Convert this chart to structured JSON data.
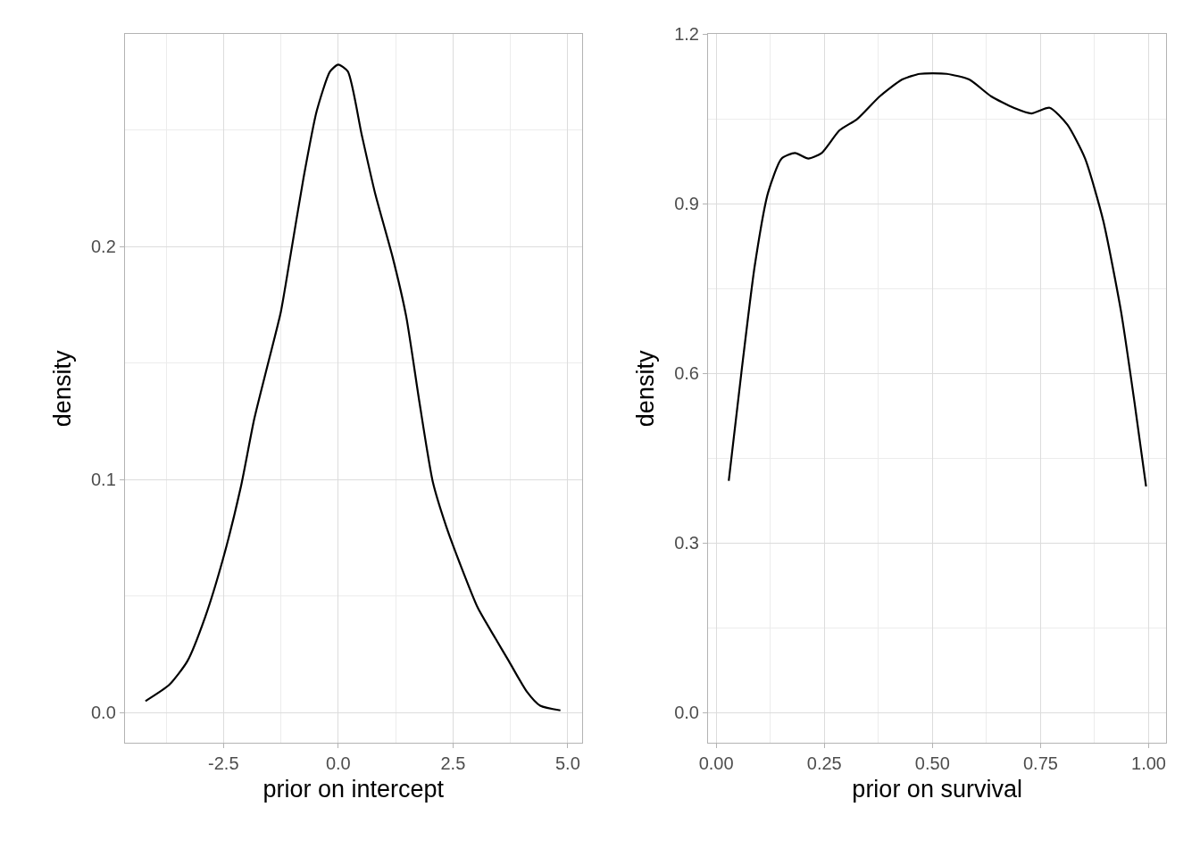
{
  "chart_data": [
    {
      "type": "line",
      "xlabel": "prior on intercept",
      "ylabel": "density",
      "xlim": [
        -4.65,
        5.31
      ],
      "ylim": [
        -0.013,
        0.291
      ],
      "xticks": [
        -2.5,
        {
          "value": 0,
          "label": "0.0"
        },
        2.5,
        {
          "value": 5,
          "label": "5.0"
        }
      ],
      "yticks": [
        {
          "value": 0,
          "label": "0.0"
        },
        0.1,
        0.2
      ],
      "grid": true,
      "marker": "none",
      "line_style": "solid",
      "series": [
        {
          "color": "#000000",
          "x": [
            -4.2,
            -3.68,
            -3.29,
            -2.9,
            -2.51,
            -2.12,
            -1.83,
            -1.54,
            -1.25,
            -1.05,
            -0.76,
            -0.47,
            -0.18,
            0,
            0.21,
            0.51,
            0.8,
            1.19,
            1.48,
            1.77,
            2.06,
            2.35,
            2.65,
            3.04,
            3.42,
            3.72,
            4.11,
            4.4,
            4.84
          ],
          "values": [
            0.005,
            0.012,
            0.022,
            0.041,
            0.066,
            0.097,
            0.126,
            0.149,
            0.172,
            0.195,
            0.229,
            0.258,
            0.275,
            0.278,
            0.275,
            0.248,
            0.223,
            0.195,
            0.17,
            0.133,
            0.099,
            0.08,
            0.064,
            0.045,
            0.032,
            0.022,
            0.009,
            0.003,
            0.001
          ]
        }
      ]
    },
    {
      "type": "line",
      "xlabel": "prior on survival",
      "ylabel": "density",
      "xlim": [
        -0.019,
        1.041
      ],
      "ylim": [
        -0.054,
        1.2
      ],
      "xticks": [
        {
          "value": 0,
          "label": "0.00"
        },
        {
          "value": 0.25,
          "label": "0.25"
        },
        {
          "value": 0.5,
          "label": "0.50"
        },
        {
          "value": 0.75,
          "label": "0.75"
        },
        {
          "value": 1,
          "label": "1.00"
        }
      ],
      "yticks": [
        {
          "value": 0,
          "label": "0.0"
        },
        {
          "value": 0.3,
          "label": "0.3"
        },
        {
          "value": 0.6,
          "label": "0.6"
        },
        {
          "value": 0.9,
          "label": "0.9"
        },
        {
          "value": 1.2,
          "label": "1.2"
        }
      ],
      "grid": true,
      "marker": "none",
      "line_style": "solid",
      "series": [
        {
          "color": "#000000",
          "x": [
            0.029,
            0.058,
            0.089,
            0.12,
            0.151,
            0.182,
            0.213,
            0.244,
            0.285,
            0.326,
            0.378,
            0.43,
            0.471,
            0.533,
            0.585,
            0.636,
            0.688,
            0.729,
            0.771,
            0.812,
            0.853,
            0.895,
            0.936,
            0.967,
            0.994
          ],
          "values": [
            0.41,
            0.6,
            0.79,
            0.92,
            0.98,
            0.99,
            0.98,
            0.99,
            1.03,
            1.05,
            1.09,
            1.12,
            1.13,
            1.13,
            1.12,
            1.09,
            1.07,
            1.06,
            1.07,
            1.04,
            0.98,
            0.87,
            0.71,
            0.55,
            0.4
          ]
        }
      ]
    }
  ]
}
